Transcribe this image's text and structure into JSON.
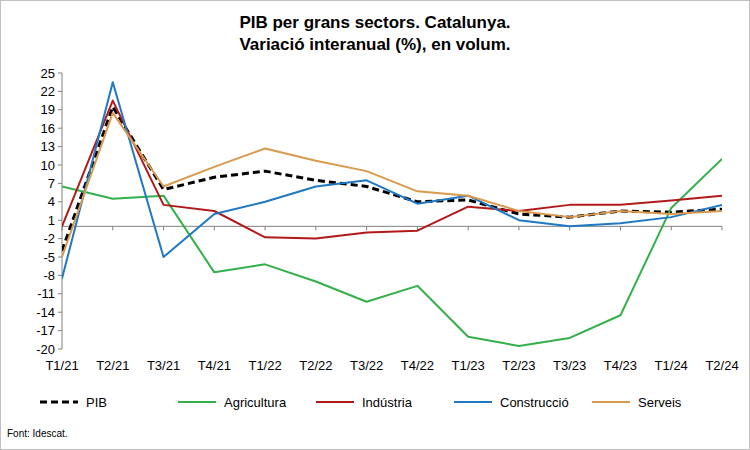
{
  "chart_data": {
    "type": "line",
    "title": "PIB per grans sectors. Catalunya.",
    "subtitle": "Variació interanual (%), en volum.",
    "source": "Font: Idescat.",
    "categories": [
      "T1/21",
      "T2/21",
      "T3/21",
      "T4/21",
      "T1/22",
      "T2/22",
      "T3/22",
      "T4/22",
      "T1/23",
      "T2/23",
      "T3/23",
      "T4/23",
      "T1/24",
      "T2/24"
    ],
    "series": [
      {
        "name": "PIB",
        "color": "#000000",
        "line_style": "dashed",
        "values": [
          -4,
          19.5,
          6,
          8,
          9,
          7.5,
          6.5,
          4,
          4.3,
          2,
          1.5,
          2.5,
          2.3,
          2.8
        ]
      },
      {
        "name": "Agricultura",
        "color": "#33b04a",
        "line_style": "solid",
        "values": [
          6.5,
          4.5,
          5,
          -7.5,
          -6.2,
          -9,
          -12.3,
          -9.7,
          -18,
          -19.5,
          -18.2,
          -14.5,
          3,
          11
        ]
      },
      {
        "name": "Indústria",
        "color": "#b2191a",
        "line_style": "solid",
        "values": [
          0,
          20.5,
          3.5,
          2.5,
          -1.8,
          -2,
          -1,
          -0.7,
          3.2,
          2.5,
          3.5,
          3.5,
          4.2,
          5
        ]
      },
      {
        "name": "Construcció",
        "color": "#1f78c1",
        "line_style": "solid",
        "values": [
          -8.5,
          23.5,
          -5,
          2,
          4,
          6.5,
          7.5,
          3.7,
          5,
          1,
          0,
          0.5,
          1.5,
          3.5
        ]
      },
      {
        "name": "Serveis",
        "color": "#d9994f",
        "line_style": "solid",
        "values": [
          -5,
          18.5,
          6.5,
          9.7,
          12.7,
          10.7,
          9,
          5.7,
          5,
          2.5,
          1.5,
          2.5,
          2,
          2.5
        ]
      }
    ],
    "ylim": [
      -20,
      25
    ],
    "yticks": [
      -20,
      -17,
      -14,
      -11,
      -8,
      -5,
      -2,
      1,
      4,
      7,
      10,
      13,
      16,
      19,
      22,
      25
    ],
    "grid": false,
    "legend": "bottom"
  }
}
